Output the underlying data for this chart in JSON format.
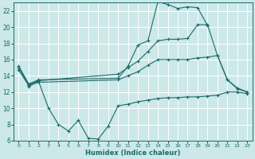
{
  "bg_color": "#cce8e8",
  "grid_color": "#ffffff",
  "line_color": "#1a6b6b",
  "xlabel": "Humidex (Indice chaleur)",
  "xlim": [
    -0.5,
    23.5
  ],
  "ylim": [
    6,
    23
  ],
  "xticks": [
    0,
    1,
    2,
    3,
    4,
    5,
    6,
    7,
    8,
    9,
    10,
    11,
    12,
    13,
    14,
    15,
    16,
    17,
    18,
    19,
    20,
    21,
    22,
    23
  ],
  "yticks": [
    6,
    8,
    10,
    12,
    14,
    16,
    18,
    20,
    22
  ],
  "line1_x": [
    0,
    1,
    2,
    10,
    11,
    12,
    13,
    14,
    15,
    16,
    17,
    18,
    19
  ],
  "line1_y": [
    15.2,
    13.0,
    13.5,
    13.7,
    15.2,
    17.8,
    18.3,
    23.1,
    22.8,
    22.3,
    22.5,
    22.4,
    20.2
  ],
  "line2_x": [
    0,
    1,
    2,
    10,
    11,
    12,
    13,
    14,
    15,
    16,
    17,
    18,
    19,
    20,
    21,
    22,
    23
  ],
  "line2_y": [
    15.0,
    12.9,
    13.4,
    14.2,
    15.0,
    15.8,
    17.0,
    18.3,
    18.5,
    18.5,
    18.6,
    20.3,
    20.3,
    16.5,
    13.5,
    12.5,
    12.0
  ],
  "line3_x": [
    0,
    1,
    2,
    10,
    11,
    12,
    13,
    14,
    15,
    16,
    17,
    18,
    19,
    20,
    21,
    22,
    23
  ],
  "line3_y": [
    14.7,
    12.8,
    13.2,
    13.5,
    14.0,
    14.5,
    15.3,
    16.0,
    16.0,
    16.0,
    16.0,
    16.2,
    16.3,
    16.5,
    13.5,
    12.4,
    12.0
  ],
  "line4_x": [
    0,
    1,
    2,
    3,
    4,
    5,
    6,
    7,
    8,
    9,
    10,
    11,
    12,
    13,
    14,
    15,
    16,
    17,
    18,
    19,
    20,
    21,
    22,
    23
  ],
  "line4_y": [
    null,
    12.7,
    13.3,
    10.0,
    8.0,
    7.2,
    8.5,
    6.3,
    6.2,
    7.8,
    10.3,
    10.5,
    10.8,
    11.0,
    11.2,
    11.3,
    11.3,
    11.4,
    11.4,
    11.5,
    11.6,
    12.0,
    12.0,
    11.8
  ]
}
